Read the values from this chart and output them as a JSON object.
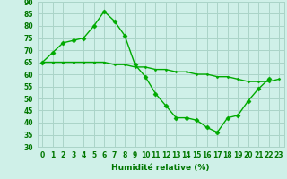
{
  "title": "",
  "xlabel": "Humidité relative (%)",
  "ylabel": "",
  "bg_color": "#cff0e8",
  "grid_color": "#aad4c8",
  "line_color": "#00aa00",
  "marker": "D",
  "xmin": -0.5,
  "xmax": 23.5,
  "ymin": 30,
  "ymax": 90,
  "yticks": [
    30,
    35,
    40,
    45,
    50,
    55,
    60,
    65,
    70,
    75,
    80,
    85,
    90
  ],
  "xticks": [
    0,
    1,
    2,
    3,
    4,
    5,
    6,
    7,
    8,
    9,
    10,
    11,
    12,
    13,
    14,
    15,
    16,
    17,
    18,
    19,
    20,
    21,
    22,
    23
  ],
  "series1_x": [
    0,
    1,
    2,
    3,
    4,
    5,
    6,
    7,
    8,
    9,
    10,
    11,
    12,
    13,
    14,
    15,
    16,
    17,
    18,
    19,
    20,
    21,
    22
  ],
  "series1_y": [
    65,
    69,
    73,
    74,
    75,
    80,
    86,
    82,
    76,
    64,
    59,
    52,
    47,
    42,
    42,
    41,
    38,
    36,
    42,
    43,
    49,
    54,
    58
  ],
  "series2_x": [
    0,
    1,
    2,
    3,
    4,
    5,
    6,
    7,
    8,
    9,
    10,
    11,
    12,
    13,
    14,
    15,
    16,
    17,
    18,
    19,
    20,
    21,
    22,
    23
  ],
  "series2_y": [
    65,
    65,
    65,
    65,
    65,
    65,
    65,
    64,
    64,
    63,
    63,
    62,
    62,
    61,
    61,
    60,
    60,
    59,
    59,
    58,
    57,
    57,
    57,
    58
  ],
  "xlabel_fontsize": 6.5,
  "tick_fontsize": 5.5,
  "tick_color": "#007700",
  "xlabel_color": "#007700"
}
